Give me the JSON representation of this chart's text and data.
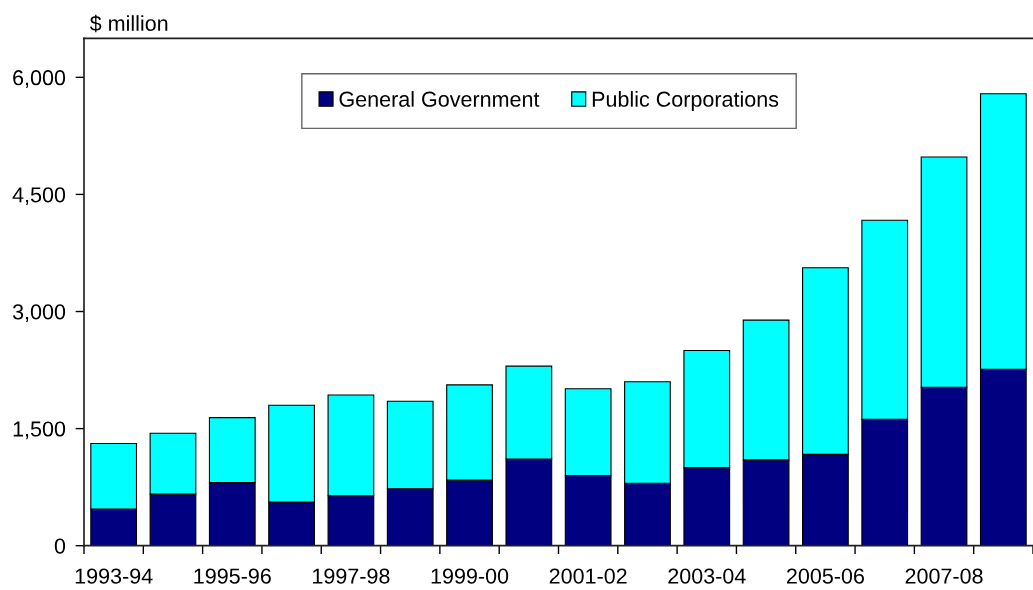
{
  "chart_data": {
    "type": "bar",
    "stacked": true,
    "categories": [
      "1993-94",
      null,
      "1995-96",
      null,
      "1997-98",
      null,
      "1999-00",
      null,
      "2001-02",
      null,
      "2003-04",
      null,
      "2005-06",
      null,
      "2007-08",
      null
    ],
    "series": [
      {
        "name": "General Government",
        "color": "#000080",
        "values": [
          470,
          660,
          810,
          560,
          640,
          730,
          840,
          1110,
          900,
          800,
          1000,
          1100,
          1170,
          1620,
          2030,
          2260
        ]
      },
      {
        "name": "Public Corporations",
        "color": "#00ffff",
        "values": [
          840,
          780,
          830,
          1240,
          1290,
          1120,
          1220,
          1190,
          1110,
          1300,
          1500,
          1790,
          2390,
          2550,
          2950,
          3530
        ]
      }
    ],
    "ylabel": "$ million",
    "ylim": [
      0,
      6500
    ],
    "yticks": [
      0,
      {
        "value": 1500,
        "label": "1,500"
      },
      {
        "value": 3000,
        "label": "3,000"
      },
      {
        "value": 4500,
        "label": "4,500"
      },
      {
        "value": 6000,
        "label": "6,000"
      }
    ],
    "legend": "top"
  }
}
